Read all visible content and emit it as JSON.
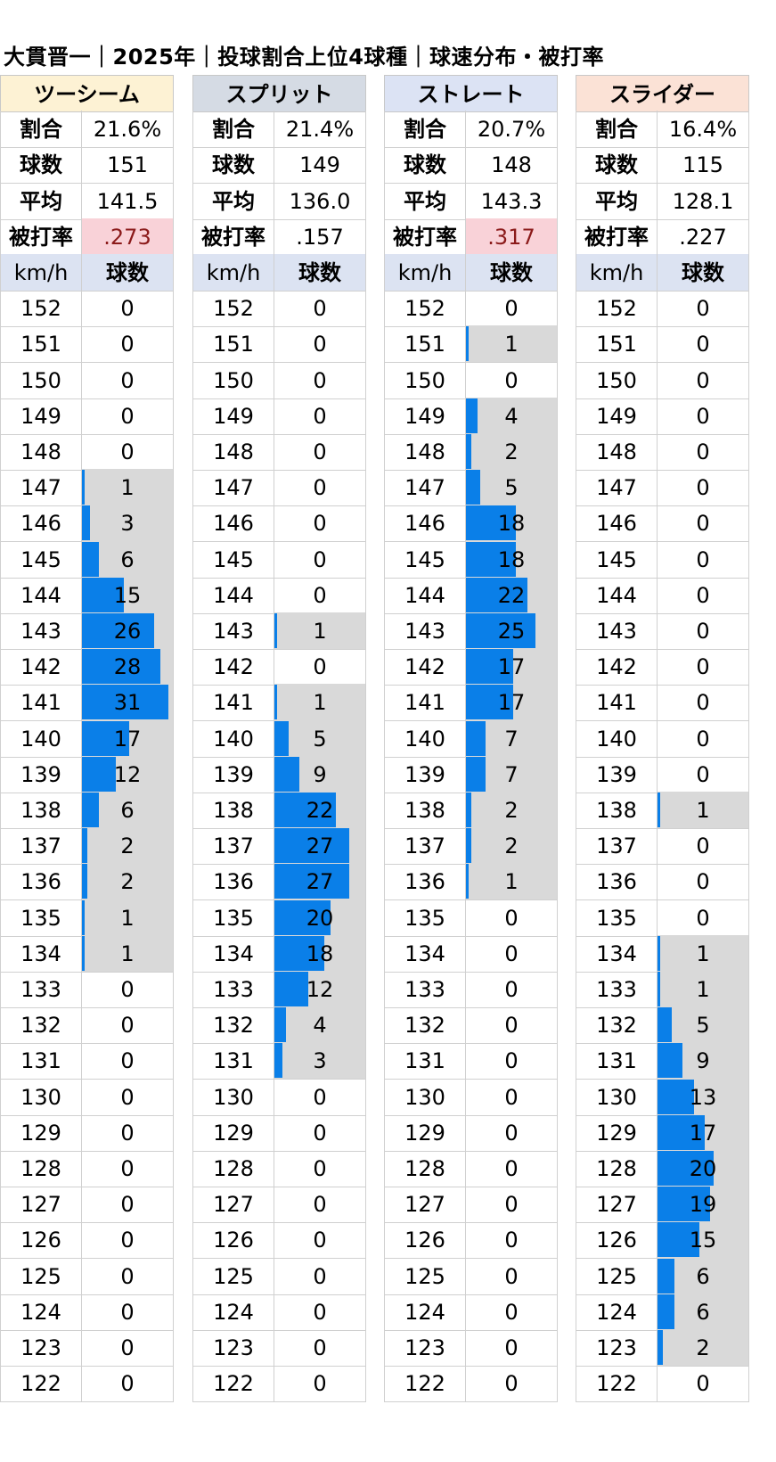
{
  "title": "大貫晋一｜2025年｜投球割合上位4球種｜球速分布・被打率",
  "colors": {
    "bar": "#0a7fe8",
    "bar_bg": "#d9d9d9",
    "highlight_bg": "#f9d2d8",
    "highlight_text": "#8b1a1a"
  },
  "labels": {
    "ratio": "割合",
    "count": "球数",
    "avg": "平均",
    "baa": "被打率",
    "kmh": "km/h",
    "pitches": "球数"
  },
  "chart_data": [
    {
      "type": "bar",
      "pitch": "ツーシーム",
      "header_color": "#fdf2d4",
      "ratio": "21.6%",
      "count": "151",
      "avg": "141.5",
      "baa": ".273",
      "baa_highlight": true,
      "categories": [
        "152",
        "151",
        "150",
        "149",
        "148",
        "147",
        "146",
        "145",
        "144",
        "143",
        "142",
        "141",
        "140",
        "139",
        "138",
        "137",
        "136",
        "135",
        "134",
        "133",
        "132",
        "131",
        "130",
        "129",
        "128",
        "127",
        "126",
        "125",
        "124",
        "123",
        "122"
      ],
      "values": [
        0,
        0,
        0,
        0,
        0,
        1,
        3,
        6,
        15,
        26,
        28,
        31,
        17,
        12,
        6,
        2,
        2,
        1,
        1,
        0,
        0,
        0,
        0,
        0,
        0,
        0,
        0,
        0,
        0,
        0,
        0
      ],
      "xlabel": "km/h",
      "ylabel": "球数"
    },
    {
      "type": "bar",
      "pitch": "スプリット",
      "header_color": "#d5dbe4",
      "ratio": "21.4%",
      "count": "149",
      "avg": "136.0",
      "baa": ".157",
      "baa_highlight": false,
      "categories": [
        "152",
        "151",
        "150",
        "149",
        "148",
        "147",
        "146",
        "145",
        "144",
        "143",
        "142",
        "141",
        "140",
        "139",
        "138",
        "137",
        "136",
        "135",
        "134",
        "133",
        "132",
        "131",
        "130",
        "129",
        "128",
        "127",
        "126",
        "125",
        "124",
        "123",
        "122"
      ],
      "values": [
        0,
        0,
        0,
        0,
        0,
        0,
        0,
        0,
        0,
        1,
        0,
        1,
        5,
        9,
        22,
        27,
        27,
        20,
        18,
        12,
        4,
        3,
        0,
        0,
        0,
        0,
        0,
        0,
        0,
        0,
        0
      ],
      "xlabel": "km/h",
      "ylabel": "球数"
    },
    {
      "type": "bar",
      "pitch": "ストレート",
      "header_color": "#dce3f4",
      "ratio": "20.7%",
      "count": "148",
      "avg": "143.3",
      "baa": ".317",
      "baa_highlight": true,
      "categories": [
        "152",
        "151",
        "150",
        "149",
        "148",
        "147",
        "146",
        "145",
        "144",
        "143",
        "142",
        "141",
        "140",
        "139",
        "138",
        "137",
        "136",
        "135",
        "134",
        "133",
        "132",
        "131",
        "130",
        "129",
        "128",
        "127",
        "126",
        "125",
        "124",
        "123",
        "122"
      ],
      "values": [
        0,
        1,
        0,
        4,
        2,
        5,
        18,
        18,
        22,
        25,
        17,
        17,
        7,
        7,
        2,
        2,
        1,
        0,
        0,
        0,
        0,
        0,
        0,
        0,
        0,
        0,
        0,
        0,
        0,
        0,
        0
      ],
      "xlabel": "km/h",
      "ylabel": "球数"
    },
    {
      "type": "bar",
      "pitch": "スライダー",
      "header_color": "#fbe2d6",
      "ratio": "16.4%",
      "count": "115",
      "avg": "128.1",
      "baa": ".227",
      "baa_highlight": false,
      "categories": [
        "152",
        "151",
        "150",
        "149",
        "148",
        "147",
        "146",
        "145",
        "144",
        "143",
        "142",
        "141",
        "140",
        "139",
        "138",
        "137",
        "136",
        "135",
        "134",
        "133",
        "132",
        "131",
        "130",
        "129",
        "128",
        "127",
        "126",
        "125",
        "124",
        "123",
        "122"
      ],
      "values": [
        0,
        0,
        0,
        0,
        0,
        0,
        0,
        0,
        0,
        0,
        0,
        0,
        0,
        0,
        1,
        0,
        0,
        0,
        1,
        1,
        5,
        9,
        13,
        17,
        20,
        19,
        15,
        6,
        6,
        2,
        0
      ],
      "xlabel": "km/h",
      "ylabel": "球数"
    }
  ]
}
